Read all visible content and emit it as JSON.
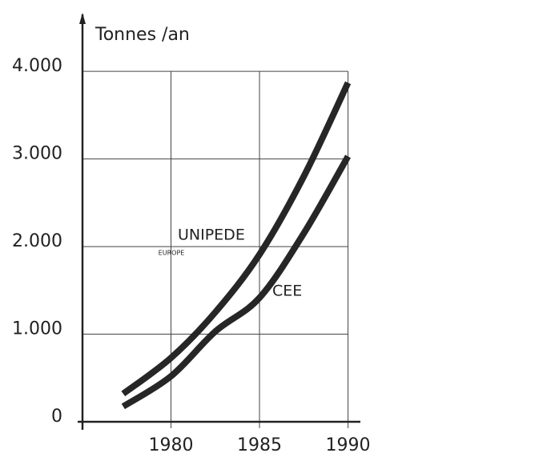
{
  "chart_data": {
    "type": "line",
    "y_label": "Tonnes /an",
    "x": [
      1977.3,
      1980,
      1982.5,
      1985,
      1987.5,
      1990
    ],
    "series": [
      {
        "name": "UNIPEDE",
        "color": "#262626",
        "values": [
          320,
          730,
          1250,
          1910,
          2800,
          3870
        ]
      },
      {
        "name": "CEE",
        "color": "#262626",
        "values": [
          175,
          520,
          1030,
          1415,
          2150,
          3030
        ]
      }
    ],
    "annotations": [
      "EUROPE"
    ],
    "xlim": [
      1975,
      1990.7
    ],
    "xticks": [
      1980,
      1985,
      1990
    ],
    "ylim": [
      0,
      4650
    ],
    "yticks": [
      0,
      {
        "value": 1000,
        "label": "1.000"
      },
      {
        "value": 2000,
        "label": "2.000"
      },
      {
        "value": 3000,
        "label": "3.000"
      },
      {
        "value": 4000,
        "label": "4.000"
      }
    ],
    "grid": true
  }
}
